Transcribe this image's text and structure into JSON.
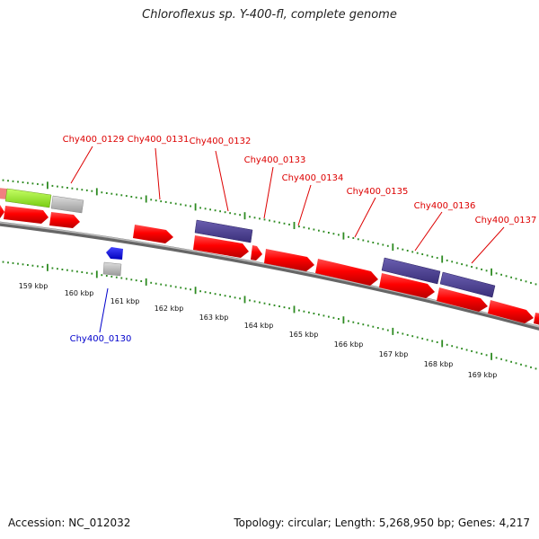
{
  "title": "Chloroflexus sp. Y-400-fl, complete genome",
  "footer": {
    "accession": "Accession: NC_012032",
    "summary": "Topology: circular; Length: 5,268,950 bp; Genes: 4,217"
  },
  "colors": {
    "forward_cds": "#ff0000",
    "reverse_cds": "#ff0000",
    "rna_gene": "#0000ff",
    "purple_feature": "#4b3f8f",
    "green_feature": "#99ee22",
    "grey_feature": "#bbbbbb",
    "tick_green": "#2e8b22",
    "backbone": "#888888",
    "label_forward": "#dd0000",
    "label_reverse": "#0000cc"
  },
  "scale": {
    "labels": [
      "159 kbp",
      "160 kbp",
      "161 kbp",
      "162 kbp",
      "163 kbp",
      "164 kbp",
      "165 kbp",
      "166 kbp",
      "167 kbp",
      "168 kbp",
      "169 kbp"
    ]
  },
  "gene_labels": [
    {
      "text": "Chy400_0129",
      "strand": "forward"
    },
    {
      "text": "Chy400_0131",
      "strand": "forward"
    },
    {
      "text": "Chy400_0132",
      "strand": "forward"
    },
    {
      "text": "Chy400_0133",
      "strand": "forward"
    },
    {
      "text": "Chy400_0134",
      "strand": "forward"
    },
    {
      "text": "Chy400_0135",
      "strand": "forward"
    },
    {
      "text": "Chy400_0136",
      "strand": "forward"
    },
    {
      "text": "Chy400_0137",
      "strand": "forward"
    },
    {
      "text": "Chy400_0130",
      "strand": "reverse"
    }
  ]
}
